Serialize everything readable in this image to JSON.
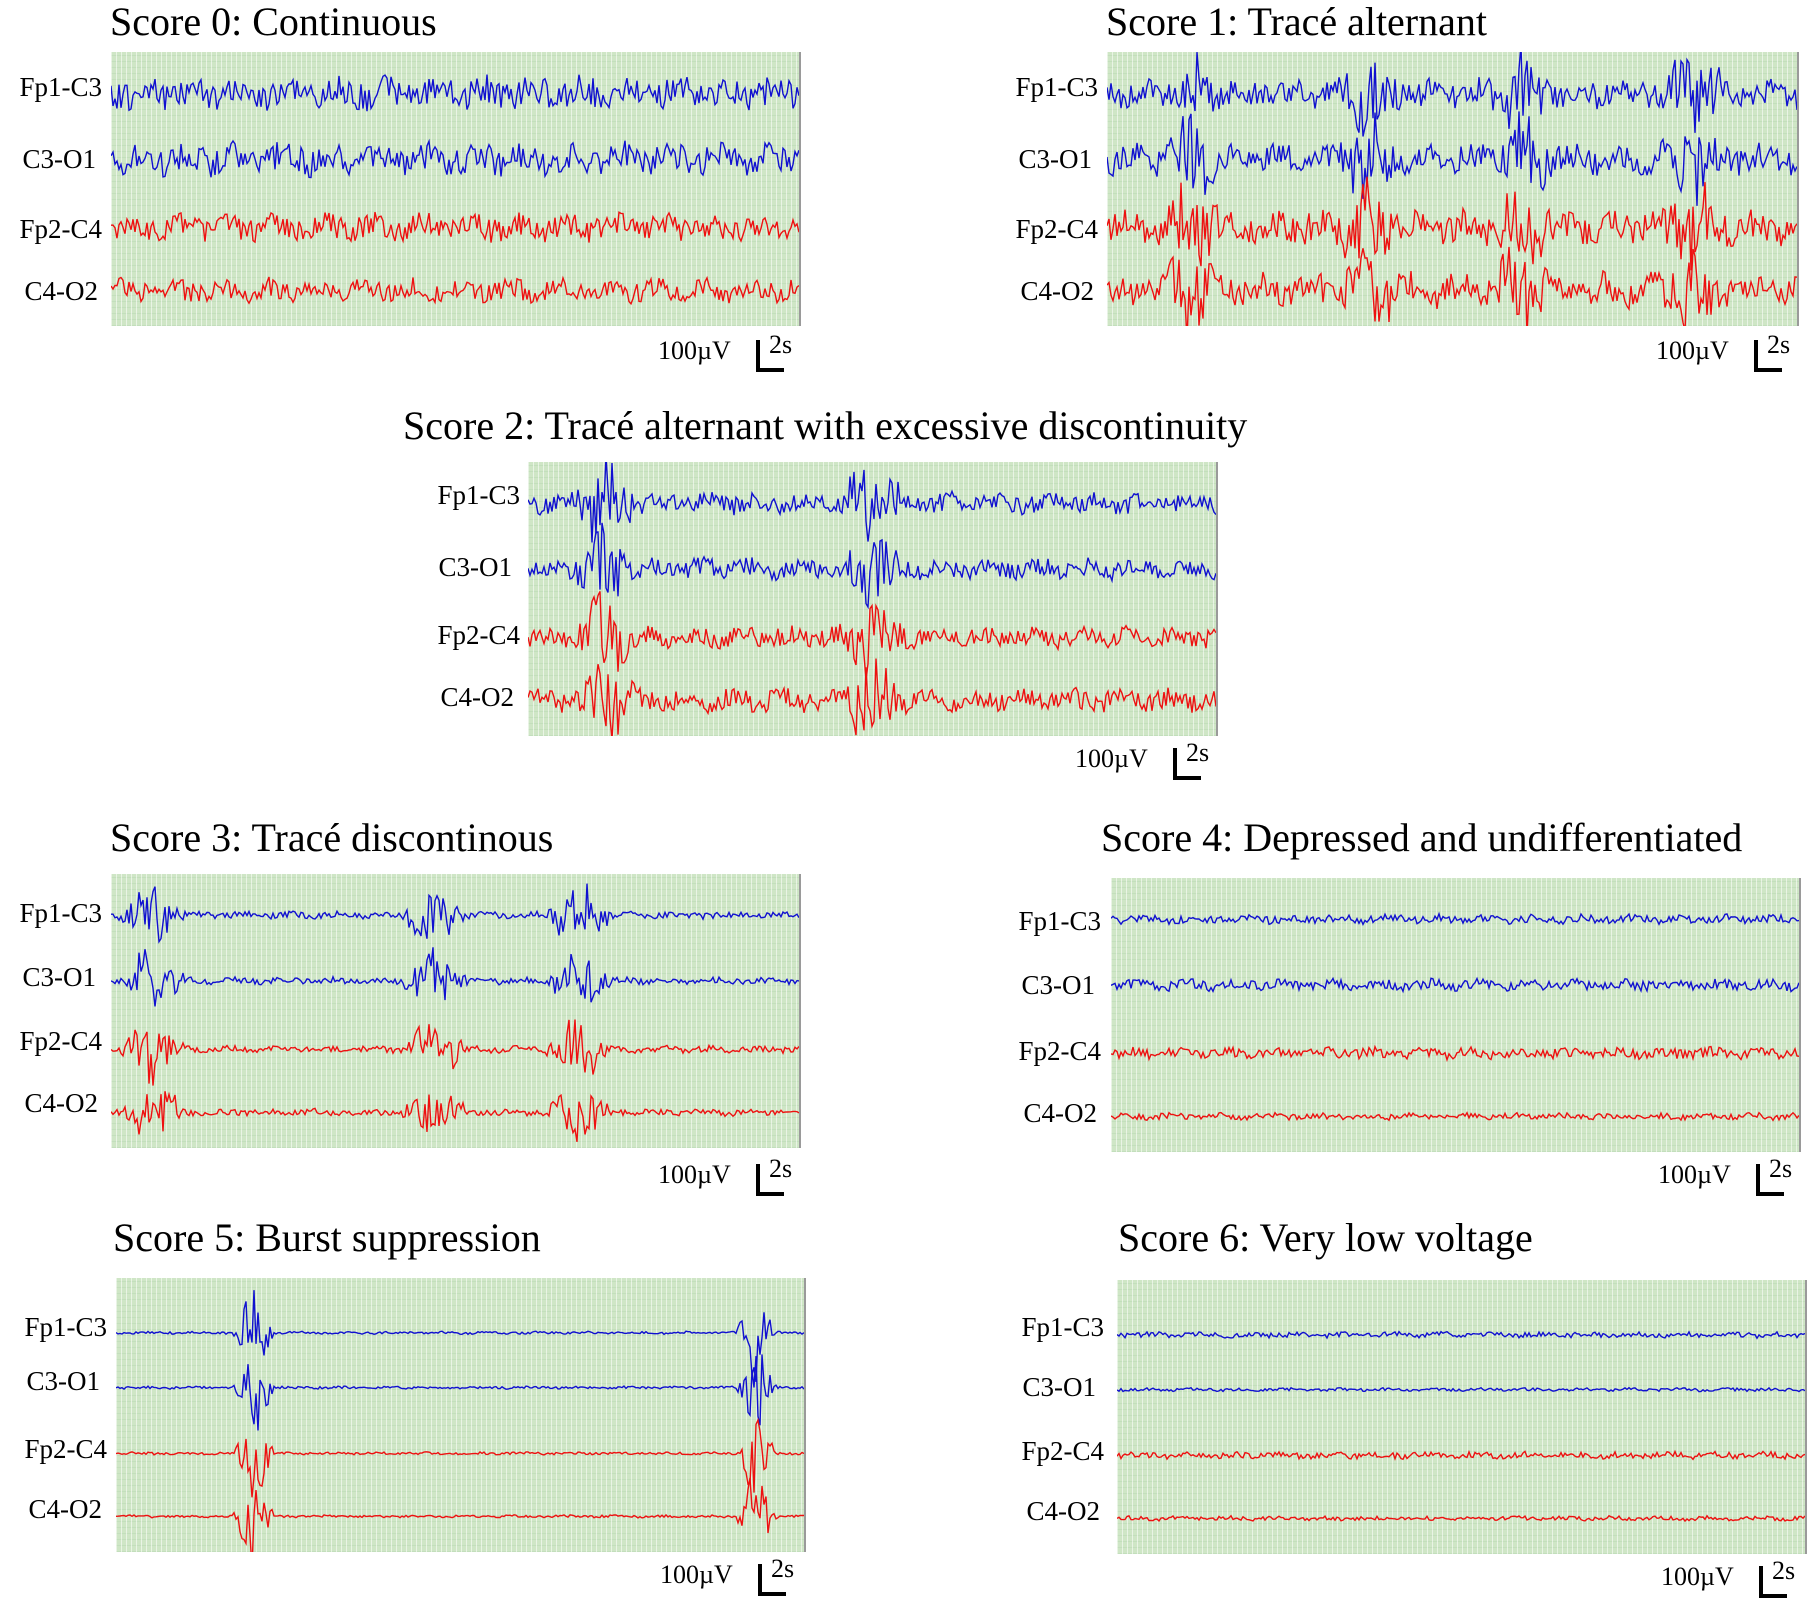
{
  "figure": {
    "panels": [
      {
        "id": "score0",
        "title": "Score 0: Continuous",
        "pattern": "continuous",
        "channels": [
          "Fp1-C3",
          "C3-O1",
          "Fp2-C4",
          "C4-O2"
        ],
        "scale": {
          "amplitude": "100µV",
          "time": "2s"
        }
      },
      {
        "id": "score1",
        "title": "Score 1: Tracé alternant",
        "pattern": "alternant",
        "channels": [
          "Fp1-C3",
          "C3-O1",
          "Fp2-C4",
          "C4-O2"
        ],
        "scale": {
          "amplitude": "100µV",
          "time": "2s"
        }
      },
      {
        "id": "score2",
        "title": "Score 2: Tracé alternant with excessive discontinuity",
        "pattern": "excessive",
        "channels": [
          "Fp1-C3",
          "C3-O1",
          "Fp2-C4",
          "C4-O2"
        ],
        "scale": {
          "amplitude": "100µV",
          "time": "2s"
        }
      },
      {
        "id": "score3",
        "title": "Score 3: Tracé discontinous",
        "pattern": "discontinuous",
        "channels": [
          "Fp1-C3",
          "C3-O1",
          "Fp2-C4",
          "C4-O2"
        ],
        "scale": {
          "amplitude": "100µV",
          "time": "2s"
        }
      },
      {
        "id": "score4",
        "title": "Score 4: Depressed and undifferentiated",
        "pattern": "depressed",
        "channels": [
          "Fp1-C3",
          "C3-O1",
          "Fp2-C4",
          "C4-O2"
        ],
        "scale": {
          "amplitude": "100µV",
          "time": "2s"
        }
      },
      {
        "id": "score5",
        "title": "Score 5: Burst suppression",
        "pattern": "burst",
        "channels": [
          "Fp1-C3",
          "C3-O1",
          "Fp2-C4",
          "C4-O2"
        ],
        "scale": {
          "amplitude": "100µV",
          "time": "2s"
        }
      },
      {
        "id": "score6",
        "title": "Score 6: Very low voltage",
        "pattern": "verylow",
        "channels": [
          "Fp1-C3",
          "C3-O1",
          "Fp2-C4",
          "C4-O2"
        ],
        "scale": {
          "amplitude": "100µV",
          "time": "2s"
        }
      }
    ],
    "colors": {
      "left_hemisphere": "#1010d0",
      "right_hemisphere": "#ee1010",
      "background": "#cfe6c6"
    }
  }
}
